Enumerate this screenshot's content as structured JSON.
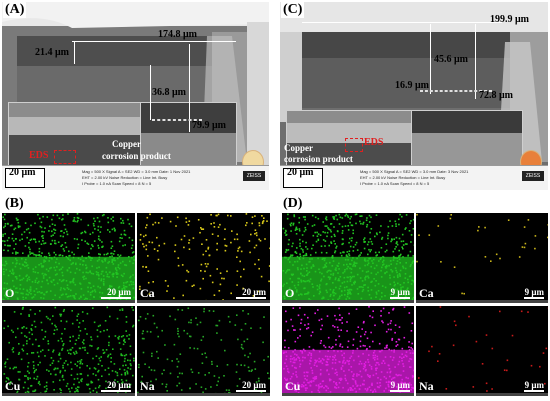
{
  "panels": {
    "A": "(A)",
    "B": "(B)",
    "C": "(C)",
    "D": "(D)"
  },
  "A": {
    "m1": "174.8 μm",
    "m2": "21.4 μm",
    "m3": "36.8 μm",
    "m4": "79.9 μm",
    "eds": "EDS",
    "note1": "Copper",
    "note2": "corrosion product",
    "scale": "20 μm",
    "meta1": "Mag = 500 X   Signal A = SE2   WD = 3.0 mm   Date: 1 Nov 2021",
    "meta2": "EHT = 2.00 kV   Noise Reduction = Line Int. Busy",
    "meta3": "I Probe = 1.0 nA   Scan Speed = 8   N = 5",
    "zeiss": "ZEISS"
  },
  "C": {
    "m1": "199.9 μm",
    "m2": "45.6 μm",
    "m3": "16.9 μm",
    "m4": "72.8 μm",
    "eds": "EDS",
    "note1": "Copper",
    "note2": "corrosion product",
    "scale": "20 μm",
    "meta1": "Mag = 500 X   Signal A = SE2   WD = 3.0 mm   Date: 3 Nov 2021",
    "meta2": "EHT = 2.00 kV   Noise Reduction = Line Int. Busy",
    "meta3": "I Probe = 1.0 nA   Scan Speed = 8   N = 5",
    "zeiss": "ZEISS"
  },
  "B": {
    "tiles": [
      {
        "element": "O",
        "scale": "20 μm",
        "color": "#22c522"
      },
      {
        "element": "Ca",
        "scale": "20 μm",
        "color": "#d8c81a"
      },
      {
        "element": "Cu",
        "scale": "20 μm",
        "color": "#1fb81f"
      },
      {
        "element": "Na",
        "scale": "20 μm",
        "color": "#26a626"
      }
    ]
  },
  "D": {
    "tiles": [
      {
        "element": "O",
        "scale": "9 μm",
        "color": "#22c522"
      },
      {
        "element": "Ca",
        "scale": "9 μm",
        "color": "#c9b51a"
      },
      {
        "element": "Cu",
        "scale": "9 μm",
        "color": "#e21ee2"
      },
      {
        "element": "Na",
        "scale": "9 μm",
        "color": "#c81a1a"
      }
    ]
  }
}
